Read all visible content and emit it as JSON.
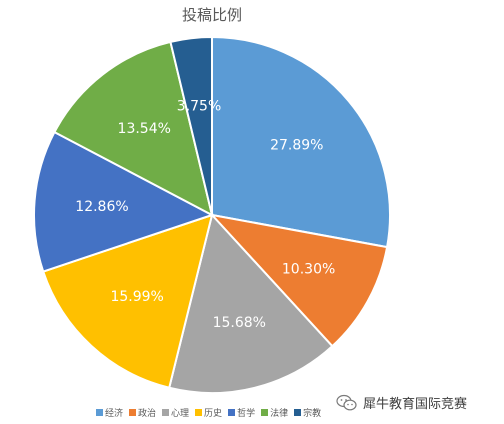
{
  "chart_data": {
    "type": "pie",
    "title": "投稿比例",
    "categories": [
      "经济",
      "政治",
      "心理",
      "历史",
      "哲学",
      "法律",
      "宗教"
    ],
    "values": [
      27.89,
      10.3,
      15.68,
      15.99,
      12.86,
      13.54,
      3.75
    ],
    "data_labels": [
      "27.89%",
      "10.30%",
      "15.68%",
      "15.99%",
      "12.86%",
      "13.54%",
      "3.75%"
    ],
    "colors": [
      "#5b9bd5",
      "#ed7d31",
      "#a5a5a5",
      "#ffc000",
      "#4472c4",
      "#70ad47",
      "#255e91"
    ],
    "legend_position": "bottom"
  },
  "watermark": {
    "text": "犀牛教育国际竞赛",
    "icon": "wechat-icon"
  }
}
